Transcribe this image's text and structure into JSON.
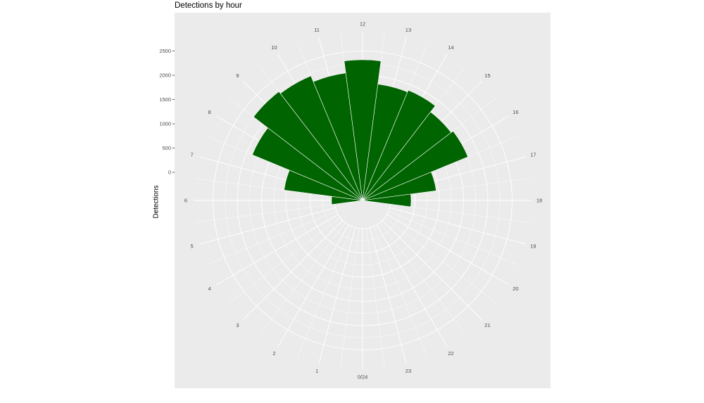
{
  "chart_data": {
    "type": "bar",
    "coord": "polar",
    "title": "Detections by hour",
    "ylabel": "Detections",
    "y_ticks": [
      0,
      500,
      1000,
      1500,
      2000,
      2500
    ],
    "angle_labels": [
      "0/24",
      "1",
      "2",
      "3",
      "4",
      "5",
      "6",
      "7",
      "8",
      "9",
      "10",
      "11",
      "12",
      "13",
      "14",
      "15",
      "16",
      "17",
      "18",
      "19",
      "20",
      "21",
      "22",
      "23"
    ],
    "categories": [
      0,
      1,
      2,
      3,
      4,
      5,
      6,
      7,
      8,
      9,
      10,
      11,
      12,
      13,
      14,
      15,
      16,
      17,
      18,
      19,
      20,
      21,
      22,
      23
    ],
    "values": [
      0,
      0,
      0,
      0,
      0,
      0,
      60,
      1050,
      1880,
      2250,
      2200,
      2070,
      2320,
      1840,
      1880,
      1720,
      1770,
      950,
      420,
      0,
      0,
      0,
      0,
      0
    ],
    "ylim": [
      0,
      2900
    ],
    "bar_color": "#006400",
    "panel_color": "#ebebeb",
    "grid_color": "#ffffff"
  }
}
